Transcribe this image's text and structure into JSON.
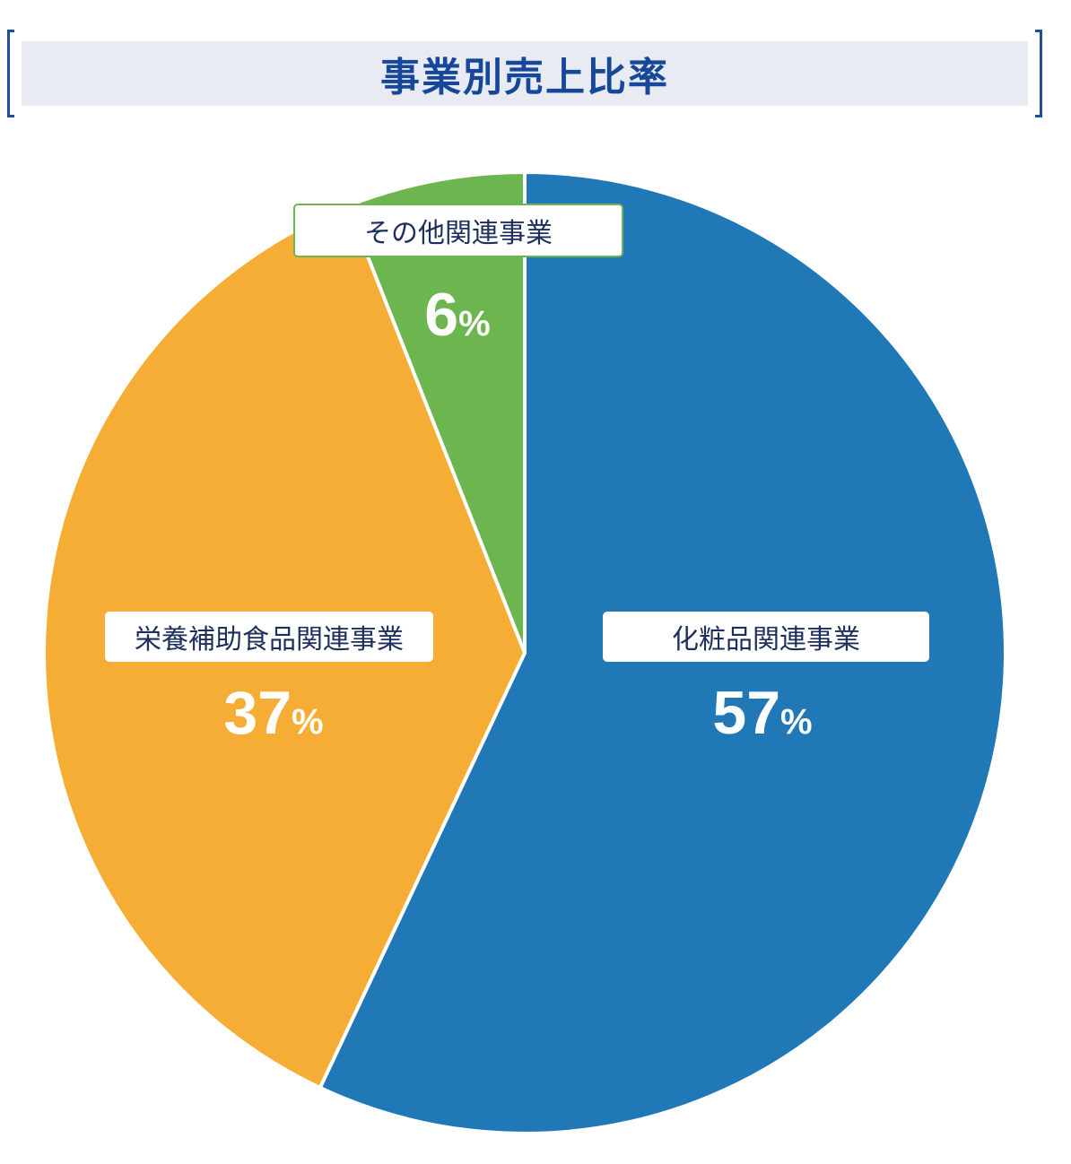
{
  "chart_data": {
    "type": "pie",
    "title": "事業別売上比率",
    "slices": [
      {
        "label": "化粧品関連事業",
        "value": 57,
        "unit": "%",
        "color": "#2079b6"
      },
      {
        "label": "栄養補助食品関連事業",
        "value": 37,
        "unit": "%",
        "color": "#f6ad35"
      },
      {
        "label": "その他関連事業",
        "value": 6,
        "unit": "%",
        "color": "#6cb54f"
      }
    ]
  }
}
